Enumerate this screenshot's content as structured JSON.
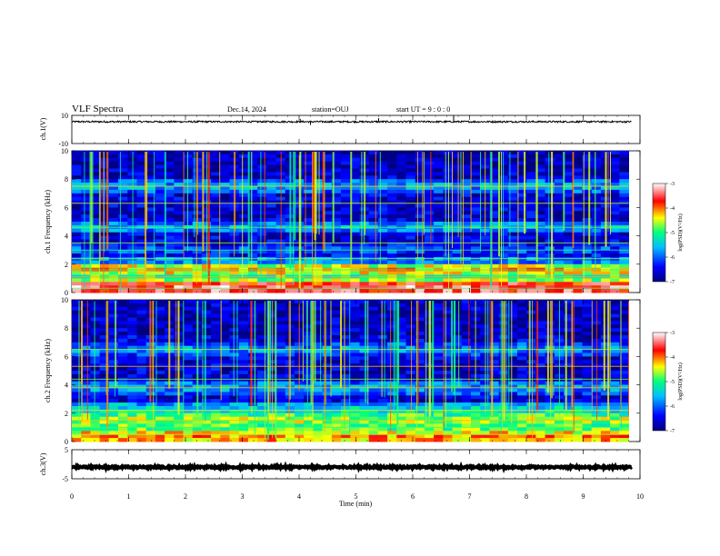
{
  "header": {
    "title": "VLF Spectra",
    "date": "Dec.14, 2024",
    "station": "station=OUJ",
    "start_ut": "start  UT =  9 : 0  : 0"
  },
  "chart_data": [
    {
      "type": "line",
      "name": "ch1-waveform",
      "ylabel": "ch.1(V)",
      "xlim": [
        0,
        10
      ],
      "ylim": [
        -10,
        10
      ],
      "yticks": [
        10,
        -10
      ],
      "baseline": 5.5,
      "noise_amplitude": 0.6,
      "spikes": [
        {
          "x": 4.02,
          "y": 7.5
        },
        {
          "x": 4.2,
          "y": 3.2
        },
        {
          "x": 5.4,
          "y": 8.0
        },
        {
          "x": 6.72,
          "y": 10.0
        }
      ]
    },
    {
      "type": "heatmap",
      "name": "ch1-spectrogram",
      "ylabel": "ch.1 Frequency (kHz)",
      "xlim": [
        0,
        9.8
      ],
      "ylim": [
        0,
        10
      ],
      "yticks": [
        0,
        2,
        4,
        6,
        8,
        10
      ],
      "colorbar": {
        "label": "log(PSD)(V²/Hz)",
        "range": [
          -7,
          -3
        ],
        "ticks": [
          -3,
          -4,
          -5,
          -6,
          -7
        ]
      },
      "bands": [
        {
          "f_khz": 0.3,
          "log_psd": -3.3
        },
        {
          "f_khz": 0.6,
          "log_psd": -4.3
        },
        {
          "f_khz": 1.1,
          "log_psd": -5.0
        },
        {
          "f_khz": 1.6,
          "log_psd": -4.2
        },
        {
          "f_khz": 3.0,
          "log_psd": -6.0
        },
        {
          "f_khz": 4.6,
          "log_psd": -5.6
        },
        {
          "f_khz": 7.5,
          "log_psd": -5.6
        }
      ]
    },
    {
      "type": "heatmap",
      "name": "ch2-spectrogram",
      "ylabel": "ch.2 Frequency (kHz)",
      "xlim": [
        0,
        9.8
      ],
      "ylim": [
        0,
        10
      ],
      "yticks": [
        0,
        2,
        4,
        6,
        8,
        10
      ],
      "colorbar": {
        "label": "log(PSD)(V²/Hz)",
        "range": [
          -7,
          -3
        ],
        "ticks": [
          -3,
          -4,
          -5,
          -6,
          -7
        ]
      },
      "bands": [
        {
          "f_khz": 0.3,
          "log_psd": -4.0
        },
        {
          "f_khz": 1.0,
          "log_psd": -4.7
        },
        {
          "f_khz": 1.5,
          "log_psd": -4.5
        },
        {
          "f_khz": 2.2,
          "log_psd": -5.2
        },
        {
          "f_khz": 3.8,
          "log_psd": -5.6
        },
        {
          "f_khz": 6.5,
          "log_psd": -5.7
        }
      ]
    },
    {
      "type": "line",
      "name": "ch3-waveform",
      "ylabel": "ch.3(V)",
      "xlim": [
        0,
        10
      ],
      "ylim": [
        -5,
        5
      ],
      "yticks": [
        5,
        -5
      ],
      "baseline": -1.0,
      "noise_amplitude": 0.3
    }
  ],
  "x_axis": {
    "label": "Time (min)",
    "ticks": [
      0,
      1,
      2,
      3,
      4,
      5,
      6,
      7,
      8,
      9,
      10
    ]
  }
}
